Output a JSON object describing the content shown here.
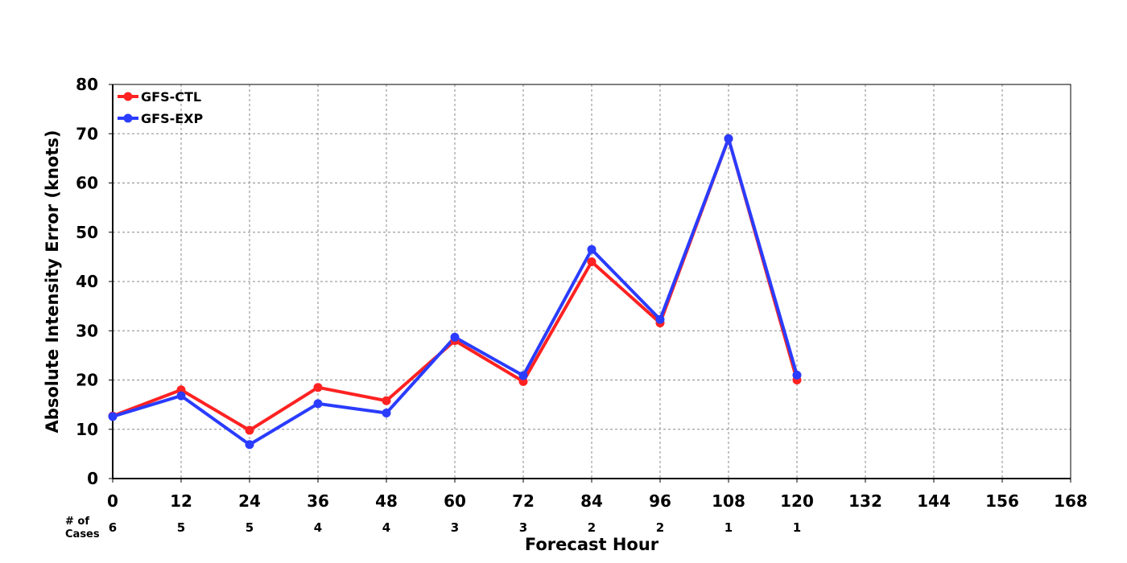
{
  "chart_data": {
    "type": "line",
    "xlabel": "Forecast Hour",
    "ylabel": "Absolute Intensity Error (knots)",
    "x_ticks": [
      "0",
      "12",
      "24",
      "36",
      "48",
      "60",
      "72",
      "84",
      "96",
      "108",
      "120",
      "132",
      "144",
      "156",
      "168"
    ],
    "xlim": [
      0,
      168
    ],
    "ylim": [
      0,
      80
    ],
    "y_ticks": [
      "0",
      "10",
      "20",
      "30",
      "40",
      "50",
      "60",
      "70",
      "80"
    ],
    "grid": true,
    "legend_position": "top-left",
    "cases_title_line1": "# of",
    "cases_title_line2": "Cases",
    "cases": [
      "6",
      "5",
      "5",
      "4",
      "4",
      "3",
      "3",
      "2",
      "2",
      "1",
      "1"
    ],
    "series": [
      {
        "name": "GFS-CTL",
        "color": "#ff2222",
        "x": [
          0,
          12,
          24,
          36,
          48,
          60,
          72,
          84,
          96,
          108,
          120
        ],
        "y": [
          12.7,
          18.0,
          9.8,
          18.5,
          15.8,
          28.0,
          19.7,
          44.0,
          31.6,
          69.0,
          20.0
        ]
      },
      {
        "name": "GFS-EXP",
        "color": "#2a3cff",
        "x": [
          0,
          12,
          24,
          36,
          48,
          60,
          72,
          84,
          96,
          108,
          120
        ],
        "y": [
          12.6,
          16.8,
          6.9,
          15.2,
          13.3,
          28.7,
          20.9,
          46.5,
          32.3,
          69.0,
          21.0
        ]
      }
    ]
  }
}
